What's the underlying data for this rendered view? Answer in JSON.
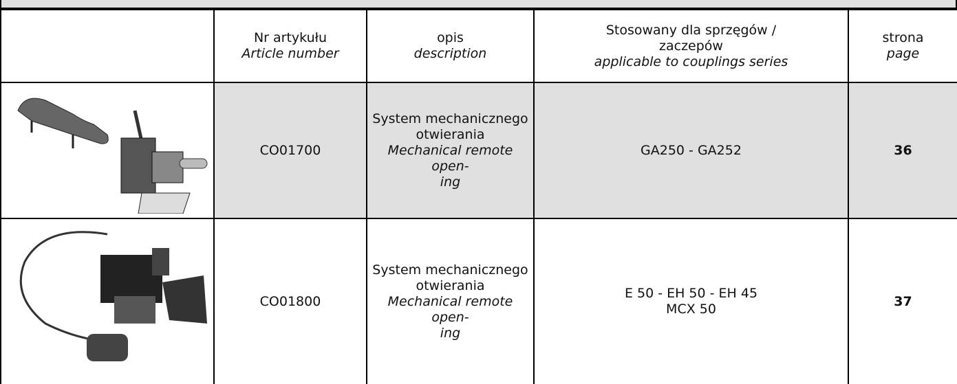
{
  "table": {
    "header": {
      "article": {
        "pl": "Nr artykułu",
        "en": "Article number"
      },
      "description": {
        "pl": "opis",
        "en": "description"
      },
      "applicable": {
        "pl": [
          "Stosowany dla sprzęgów /",
          "zaczepów"
        ],
        "en": "applicable to couplings series"
      },
      "page": {
        "pl": "strona",
        "en": "page"
      }
    },
    "rows": [
      {
        "article": "CO01700",
        "description": {
          "pl": [
            "System mechanicznego",
            "otwierania"
          ],
          "en": [
            "Mechanical remote open-",
            "ing"
          ]
        },
        "applicable": [
          "GA250 - GA252"
        ],
        "page": 36
      },
      {
        "article": "CO01800",
        "description": {
          "pl": [
            "System mechanicznego",
            "otwierania"
          ],
          "en": [
            "Mechanical remote open-",
            "ing"
          ]
        },
        "applicable": [
          "E 50 - EH 50 - EH 45",
          "MCX 50"
        ],
        "page": 37
      }
    ]
  }
}
